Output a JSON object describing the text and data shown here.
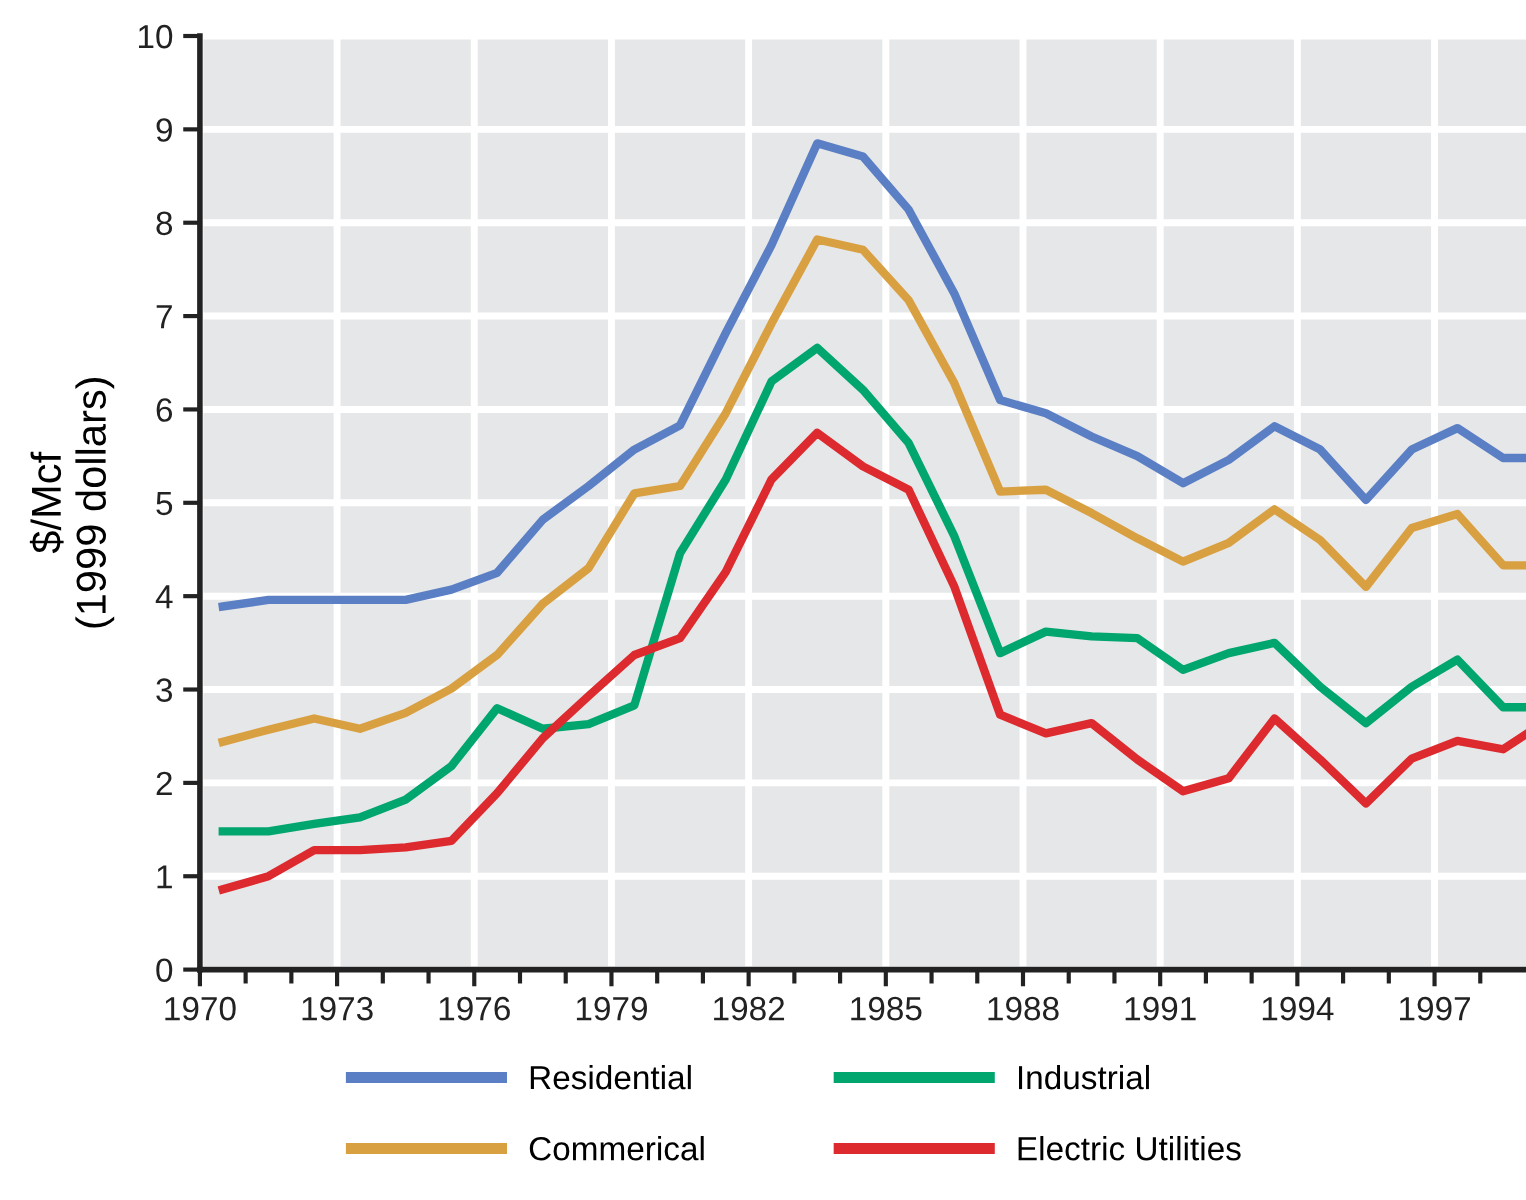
{
  "chart_data": {
    "type": "line",
    "ylabel": "$/Mcf\n(1999 dollars)",
    "x": [
      1970.5,
      1971.5,
      1972.5,
      1973.5,
      1974.5,
      1975.5,
      1976.5,
      1977.5,
      1978.5,
      1979.5,
      1980.5,
      1981.5,
      1982.5,
      1983.5,
      1984.5,
      1985.5,
      1986.5,
      1987.5,
      1988.5,
      1989.5,
      1990.5,
      1991.5,
      1992.5,
      1993.5,
      1994.5,
      1995.5,
      1996.5,
      1997.5,
      1998.5,
      1999
    ],
    "series": [
      {
        "name": "Residential",
        "color": "#5b7fc4",
        "values": [
          3.89,
          3.96,
          3.96,
          3.96,
          3.96,
          4.07,
          4.25,
          4.82,
          5.18,
          5.57,
          5.83,
          6.82,
          7.76,
          8.85,
          8.71,
          8.14,
          7.24,
          6.1,
          5.96,
          5.71,
          5.5,
          5.21,
          5.46,
          5.82,
          5.57,
          5.03,
          5.57,
          5.8,
          5.48,
          5.48
        ]
      },
      {
        "name": "Commerical",
        "color": "#d9a042",
        "values": [
          2.44,
          2.57,
          2.69,
          2.58,
          2.75,
          3.01,
          3.37,
          3.92,
          4.3,
          5.1,
          5.18,
          5.96,
          6.92,
          7.82,
          7.71,
          7.17,
          6.28,
          5.12,
          5.14,
          4.89,
          4.62,
          4.37,
          4.57,
          4.93,
          4.6,
          4.1,
          4.73,
          4.88,
          4.33,
          4.33
        ]
      },
      {
        "name": "Industrial",
        "color": "#00a66e",
        "values": [
          1.48,
          1.48,
          1.56,
          1.63,
          1.82,
          2.18,
          2.8,
          2.58,
          2.63,
          2.83,
          4.46,
          5.25,
          6.3,
          6.66,
          6.21,
          5.64,
          4.64,
          3.39,
          3.62,
          3.57,
          3.55,
          3.21,
          3.39,
          3.5,
          3.03,
          2.64,
          3.03,
          3.32,
          2.81,
          2.81
        ]
      },
      {
        "name": "Electric Utilities",
        "color": "#dd2a2e",
        "values": [
          0.86,
          1.0,
          1.28,
          1.28,
          1.31,
          1.38,
          1.89,
          2.48,
          2.93,
          3.37,
          3.55,
          4.26,
          5.25,
          5.75,
          5.39,
          5.14,
          4.1,
          2.73,
          2.53,
          2.64,
          2.25,
          1.91,
          2.05,
          2.69,
          2.25,
          1.78,
          2.26,
          2.45,
          2.36,
          2.52
        ]
      }
    ],
    "xlim": [
      1970,
      1999
    ],
    "ylim": [
      0,
      10
    ],
    "xticks": [
      1970,
      {
        "value": 1971,
        "label": null
      },
      {
        "value": 1972,
        "label": null
      },
      1973,
      {
        "value": 1974,
        "label": null
      },
      {
        "value": 1975,
        "label": null
      },
      1976,
      {
        "value": 1977,
        "label": null
      },
      {
        "value": 1978,
        "label": null
      },
      1979,
      {
        "value": 1980,
        "label": null
      },
      {
        "value": 1981,
        "label": null
      },
      1982,
      {
        "value": 1983,
        "label": null
      },
      {
        "value": 1984,
        "label": null
      },
      1985,
      {
        "value": 1986,
        "label": null
      },
      {
        "value": 1987,
        "label": null
      },
      1988,
      {
        "value": 1989,
        "label": null
      },
      {
        "value": 1990,
        "label": null
      },
      1991,
      {
        "value": 1992,
        "label": null
      },
      {
        "value": 1993,
        "label": null
      },
      1994,
      {
        "value": 1995,
        "label": null
      },
      {
        "value": 1996,
        "label": null
      },
      1997,
      {
        "value": 1998,
        "label": null
      }
    ],
    "yticks": [
      0,
      1,
      2,
      3,
      4,
      5,
      6,
      7,
      8,
      9,
      10
    ],
    "grid": true,
    "legend": "bottom",
    "marker": "none",
    "line_style": "solid"
  }
}
